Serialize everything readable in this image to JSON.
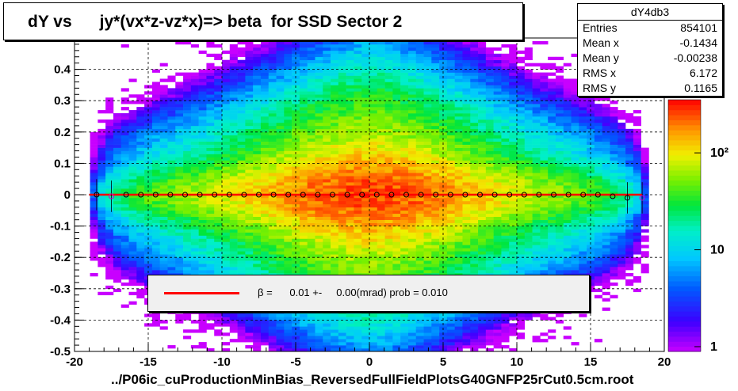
{
  "title": "dY vs      jy*(vx*z-vz*x)=> beta  for SSD Sector 2",
  "stats": {
    "name": "dY4db3",
    "rows": [
      {
        "label": "Entries",
        "value": "854101"
      },
      {
        "label": "Mean x",
        "value": "-0.1434"
      },
      {
        "label": "Mean y",
        "value": "-0.00238"
      },
      {
        "label": "RMS x",
        "value": "6.172"
      },
      {
        "label": "RMS y",
        "value": "0.1165"
      }
    ]
  },
  "fit_legend": "β =      0.01 +-     0.00(mrad) prob = 0.010",
  "footer": "../P06ic_cuProductionMinBias_ReversedFullFieldPlotsG40GNFP25rCut0.5cm.root",
  "colors": {
    "fit_line": "#ff0000",
    "profile_points": "#000000",
    "profile_alt_points": "#cc00cc"
  },
  "chart_data": {
    "type": "heatmap",
    "title": "dY vs      jy*(vx*z-vz*x)=> beta  for SSD Sector 2",
    "xlim": [
      -20,
      20
    ],
    "ylim": [
      -0.5,
      0.5
    ],
    "x_ticks": [
      "-20",
      "-15",
      "-10",
      "-5",
      "0",
      "5",
      "10",
      "15",
      "20"
    ],
    "y_ticks": [
      "-0.5",
      "-0.4",
      "-0.3",
      "-0.2",
      "-0.1",
      "0",
      "0.1",
      "0.2",
      "0.3",
      "0.4"
    ],
    "z_scale": "log",
    "z_ticks": [
      "1",
      "10",
      "10²"
    ],
    "grid": true,
    "density": {
      "x_center": 0,
      "x_extent": 19,
      "y_center": 0,
      "y_sigma": 0.1165,
      "peak_count": 300
    },
    "profile": {
      "x": [
        -18.5,
        -17.5,
        -16.5,
        -15.5,
        -14.5,
        -13.5,
        -12.5,
        -11.5,
        -10.5,
        -9.5,
        -8.5,
        -7.5,
        -6.5,
        -5.5,
        -4.5,
        -3.5,
        -2.5,
        -1.5,
        -0.5,
        0.5,
        1.5,
        2.5,
        3.5,
        4.5,
        5.5,
        6.5,
        7.5,
        8.5,
        9.5,
        10.5,
        11.5,
        12.5,
        13.5,
        14.5,
        15.5,
        16.5,
        17.5,
        18.5
      ],
      "y": [
        0.0,
        -0.005,
        0.0,
        0.0,
        0.0,
        0.0,
        0.0,
        0.0,
        0.0,
        0.0,
        0.0,
        0.0,
        0.0,
        0.0,
        0.0,
        0.0,
        0.0,
        0.0,
        0.0,
        0.0,
        0.0,
        0.0,
        0.0,
        0.0,
        0.0,
        0.0,
        0.0,
        0.0,
        0.0,
        0.0,
        0.0,
        0.0,
        0.0,
        0.0,
        0.0,
        -0.005,
        -0.01,
        -0.01
      ]
    },
    "fit": {
      "x_range": [
        -19,
        18.5
      ],
      "y": 0.0,
      "beta": "0.01",
      "error": "0.00",
      "unit": "mrad",
      "prob": "0.010"
    }
  }
}
